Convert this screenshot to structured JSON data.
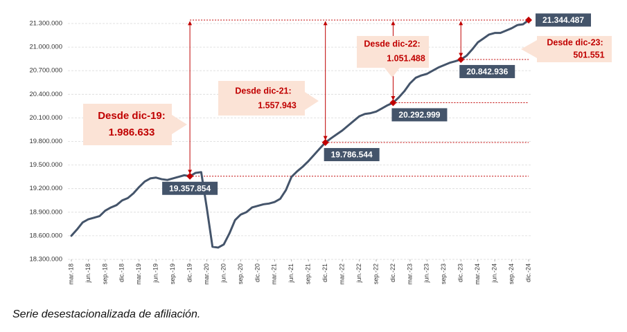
{
  "chart_data": {
    "type": "line",
    "categories": [
      "mar.-18",
      null,
      null,
      "jun.-18",
      null,
      null,
      "sep.-18",
      null,
      null,
      "dic.-18",
      null,
      null,
      "mar.-19",
      null,
      null,
      "jun.-19",
      null,
      null,
      "sep.-19",
      null,
      null,
      "dic.-19",
      null,
      null,
      "mar.-20",
      null,
      null,
      "jun.-20",
      null,
      null,
      "sep.-20",
      null,
      null,
      "dic.-20",
      null,
      null,
      "mar.-21",
      null,
      null,
      "jun.-21",
      null,
      null,
      "sep.-21",
      null,
      null,
      "dic.-21",
      null,
      null,
      "mar.-22",
      null,
      null,
      "jun.-22",
      null,
      null,
      "sep.-22",
      null,
      null,
      "dic.-22",
      null,
      null,
      "mar.-23",
      null,
      null,
      "jun.-23",
      null,
      null,
      "sep.-23",
      null,
      null,
      "dic.-23",
      null,
      null,
      "mar.-24",
      null,
      null,
      "jun.-24",
      null,
      null,
      "sep.-24",
      null,
      null,
      "dic.-24"
    ],
    "values": [
      18600000,
      18680000,
      18770000,
      18810000,
      18830000,
      18850000,
      18920000,
      18960000,
      18990000,
      19050000,
      19080000,
      19140000,
      19220000,
      19290000,
      19330000,
      19340000,
      19320000,
      19310000,
      19330000,
      19350000,
      19370000,
      19357854,
      19400000,
      19410000,
      18950000,
      18460000,
      18450000,
      18490000,
      18630000,
      18800000,
      18870000,
      18900000,
      18960000,
      18980000,
      19000000,
      19010000,
      19030000,
      19070000,
      19180000,
      19350000,
      19420000,
      19480000,
      19550000,
      19630000,
      19710000,
      19786544,
      19840000,
      19890000,
      19940000,
      20000000,
      20060000,
      20120000,
      20150000,
      20160000,
      20180000,
      20220000,
      20260000,
      20292999,
      20360000,
      20440000,
      20540000,
      20610000,
      20640000,
      20660000,
      20700000,
      20740000,
      20770000,
      20800000,
      20820000,
      20842936,
      20890000,
      20970000,
      21060000,
      21110000,
      21160000,
      21180000,
      21180000,
      21210000,
      21240000,
      21280000,
      21290000,
      21344487
    ],
    "value_labels": [
      null,
      null,
      null,
      null,
      null,
      null,
      null,
      null,
      null,
      null,
      null,
      null,
      null,
      null,
      null,
      null,
      null,
      null,
      null,
      null,
      null,
      "19.357.854",
      null,
      null,
      null,
      null,
      null,
      null,
      null,
      null,
      null,
      null,
      null,
      null,
      null,
      null,
      null,
      null,
      null,
      null,
      null,
      null,
      null,
      null,
      null,
      "19.786.544",
      null,
      null,
      null,
      null,
      null,
      null,
      null,
      null,
      null,
      null,
      null,
      "20.292.999",
      null,
      null,
      null,
      null,
      null,
      null,
      null,
      null,
      null,
      null,
      null,
      "20.842.936",
      null,
      null,
      null,
      null,
      null,
      null,
      null,
      null,
      null,
      null,
      null,
      "21.344.487"
    ],
    "color": "#44546a",
    "marker_color": "#c00000",
    "ylim": [
      18300000,
      21300000
    ],
    "yticks": [
      {
        "value": 18300000,
        "label": "18.300.000"
      },
      {
        "value": 18600000,
        "label": "18.600.000"
      },
      {
        "value": 18900000,
        "label": "18.900.000"
      },
      {
        "value": 19200000,
        "label": "19.200.000"
      },
      {
        "value": 19500000,
        "label": "19.500.000"
      },
      {
        "value": 19800000,
        "label": "19.800.000"
      },
      {
        "value": 20100000,
        "label": "20.100.000"
      },
      {
        "value": 20400000,
        "label": "20.400.000"
      },
      {
        "value": 20700000,
        "label": "20.700.000"
      },
      {
        "value": 21000000,
        "label": "21.000.000"
      },
      {
        "value": 21300000,
        "label": "21.300.000"
      }
    ],
    "grid": true,
    "annotations": [
      {
        "text": "Desde dic-19:",
        "value": 1986633,
        "value_label": "1.986.633"
      },
      {
        "text": "Desde dic-21:",
        "value": 1557943,
        "value_label": "1.557.943"
      },
      {
        "text": "Desde dic-22:",
        "value": 1051488,
        "value_label": "1.051.488"
      },
      {
        "text": "Desde dic-23:",
        "value": 501551,
        "value_label": "501.551"
      }
    ],
    "caption": "Serie desestacionalizada de afiliación."
  }
}
